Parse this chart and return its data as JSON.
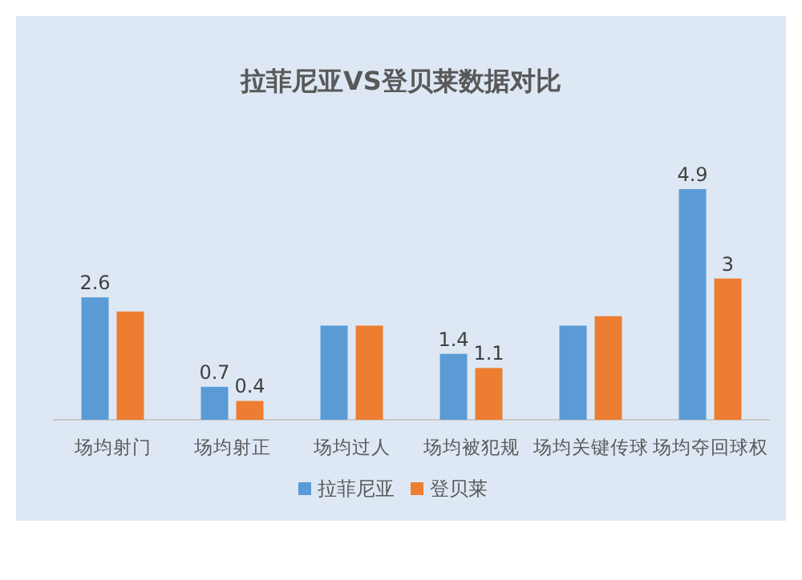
{
  "chart_data": {
    "type": "bar",
    "title": "拉菲尼亚VS登贝莱数据对比",
    "categories": [
      "场均射门",
      "场均射正",
      "场均过人",
      "场均被犯规",
      "场均关键传球",
      "场均夺回球权"
    ],
    "series": [
      {
        "name": "拉菲尼亚",
        "color": "#5b9bd5",
        "values": [
          2.6,
          0.7,
          2.0,
          1.4,
          2.0,
          4.9
        ],
        "value_labels": [
          "2.6",
          "0.7",
          null,
          "1.4",
          null,
          "4.9"
        ]
      },
      {
        "name": "登贝莱",
        "color": "#ed7d31",
        "values": [
          2.3,
          0.4,
          2.0,
          1.1,
          2.2,
          3
        ],
        "value_labels": [
          null,
          "0.4",
          null,
          "1.1",
          null,
          "3"
        ]
      }
    ],
    "legend": "bottom"
  }
}
